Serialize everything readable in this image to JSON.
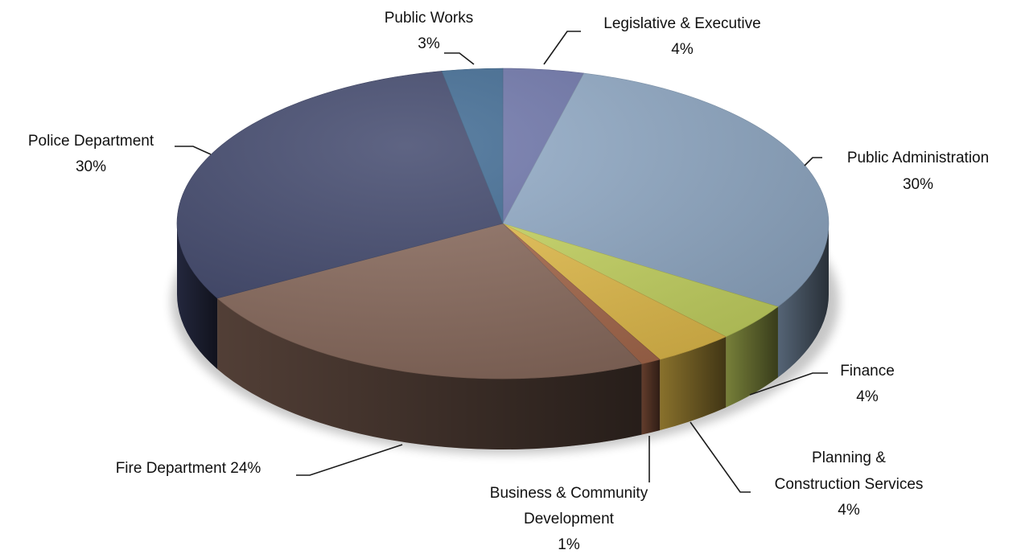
{
  "chart_data": {
    "type": "pie",
    "style": "3d-exploded-none",
    "title": "",
    "slices": [
      {
        "name": "Legislative & Executive",
        "value": 4,
        "label": "4%",
        "color": "#6a72a8"
      },
      {
        "name": "Public Administration",
        "value": 30,
        "label": "30%",
        "color": "#8fa9c6"
      },
      {
        "name": "Finance",
        "value": 4,
        "label": "4%",
        "color": "#c9d860"
      },
      {
        "name": "Planning & Construction Services",
        "value": 4,
        "label": "4%",
        "color": "#e8c04a"
      },
      {
        "name": "Business & Community Development",
        "value": 1,
        "label": "1%",
        "color": "#a8684a"
      },
      {
        "name": "Fire Department",
        "value": 24,
        "label": "24%",
        "color": "#8a6a5c"
      },
      {
        "name": "Police Department",
        "value": 30,
        "label": "30%",
        "color": "#3b4268"
      },
      {
        "name": "Public Works",
        "value": 3,
        "label": "3%",
        "color": "#3a6690"
      }
    ]
  },
  "labels": {
    "legislative": {
      "line1": "Legislative & Executive",
      "line2": "4%"
    },
    "public_admin": {
      "line1": "Public Administration",
      "line2": "30%"
    },
    "finance": {
      "line1": "Finance",
      "line2": "4%"
    },
    "planning": {
      "line1": "Planning &",
      "line2": "Construction Services",
      "line3": "4%"
    },
    "business": {
      "line1": "Business & Community",
      "line2": "Development",
      "line3": "1%"
    },
    "fire": {
      "line1": "Fire Department  24%"
    },
    "police": {
      "line1": "Police Department",
      "line2": "30%"
    },
    "public_works": {
      "line1": "Public Works",
      "line2": "3%"
    }
  }
}
